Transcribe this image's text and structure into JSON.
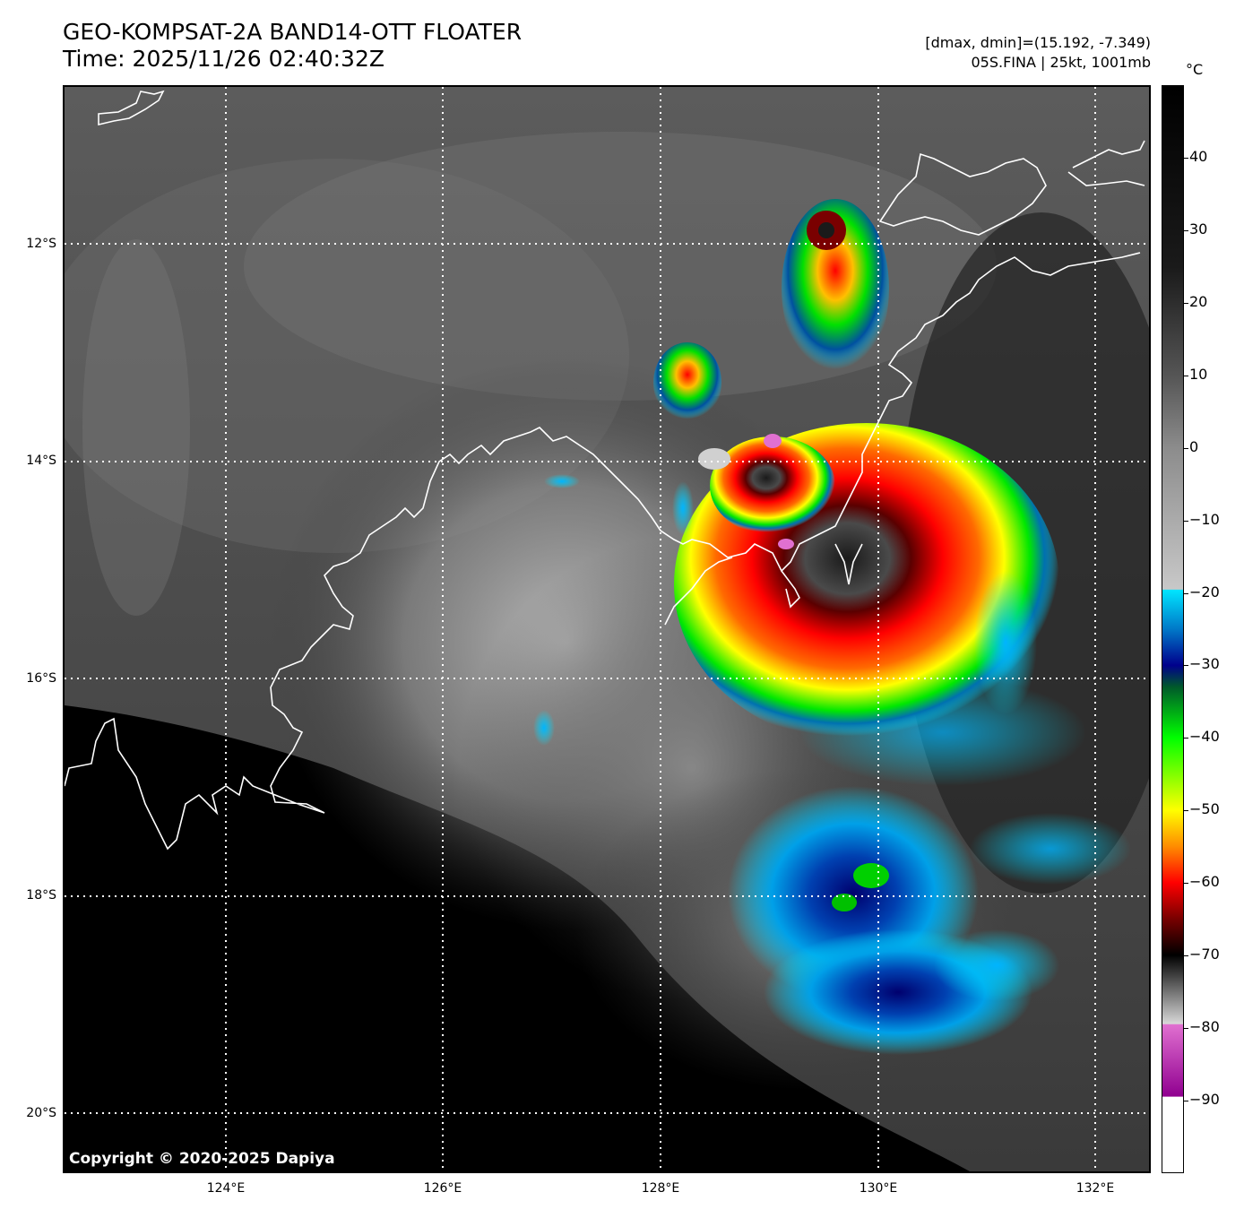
{
  "header": {
    "title_line1": "GEO-KOMPSAT-2A BAND14-OTT FLOATER",
    "title_line2": "Time: 2025/11/26 02:40:32Z",
    "info_line1": "[dmax, dmin]=(15.192, -7.349)",
    "info_line2": "05S.FINA | 25kt, 1001mb"
  },
  "map": {
    "lat_labels": [
      "12°S",
      "14°S",
      "16°S",
      "18°S",
      "20°S"
    ],
    "lon_labels": [
      "124°E",
      "126°E",
      "128°E",
      "130°E",
      "132°E"
    ],
    "copyright": "Copyright © 2020-2025 Dapiya",
    "colors": {
      "background": "#000000",
      "coastline": "#ffffff",
      "gridlines": "#ffffff"
    }
  },
  "colorbar": {
    "unit": "°C",
    "tick_labels": [
      "40",
      "30",
      "20",
      "10",
      "0",
      "−10",
      "−20",
      "−30",
      "−40",
      "−50",
      "−60",
      "−70",
      "−80",
      "−90"
    ],
    "stops": [
      {
        "temp": 50,
        "color": "#000000"
      },
      {
        "temp": 25,
        "color": "#1a1a1a"
      },
      {
        "temp": 10,
        "color": "#555555"
      },
      {
        "temp": 0,
        "color": "#8c8c8c"
      },
      {
        "temp": -19.5,
        "color": "#c8c8c8"
      },
      {
        "temp": -19.6,
        "color": "#00e5ff"
      },
      {
        "temp": -25,
        "color": "#0078c8"
      },
      {
        "temp": -30,
        "color": "#00008c"
      },
      {
        "temp": -33,
        "color": "#005a2a"
      },
      {
        "temp": -40,
        "color": "#00ff00"
      },
      {
        "temp": -50,
        "color": "#ffff00"
      },
      {
        "temp": -55,
        "color": "#ff8c00"
      },
      {
        "temp": -60,
        "color": "#ff0000"
      },
      {
        "temp": -65,
        "color": "#780000"
      },
      {
        "temp": -70,
        "color": "#000000"
      },
      {
        "temp": -79.5,
        "color": "#d8d8d8"
      },
      {
        "temp": -79.6,
        "color": "#e070d0"
      },
      {
        "temp": -89.5,
        "color": "#900090"
      },
      {
        "temp": -89.6,
        "color": "#ffffff"
      },
      {
        "temp": -100,
        "color": "#ffffff"
      }
    ]
  }
}
